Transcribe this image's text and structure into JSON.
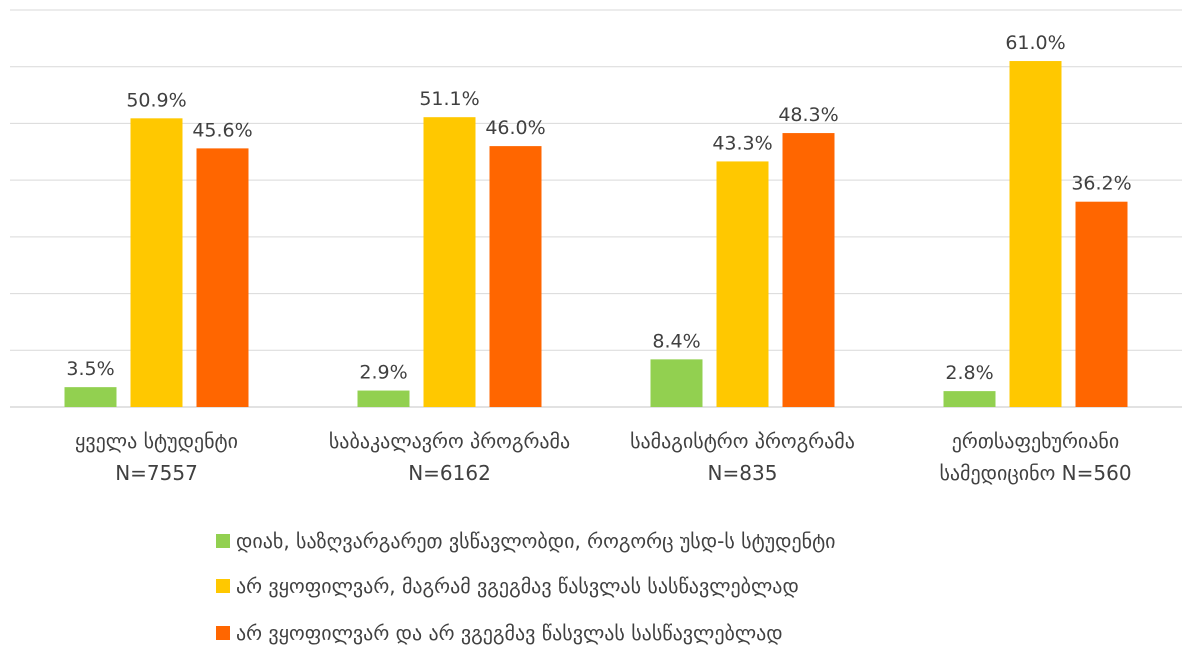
{
  "chart_data": {
    "type": "bar",
    "categories": [
      [
        "ყველა სტუდენტი",
        "N=7557"
      ],
      [
        "საბაკალავრო პროგრამა",
        "N=6162"
      ],
      [
        "სამაგისტრო პროგრამა",
        "N=835"
      ],
      [
        "ერთსაფეხურიანი",
        "სამედიცინო N=560"
      ]
    ],
    "series": [
      {
        "name": "დიახ, საზღვარგარეთ ვსწავლობდი, როგორც უსდ-ს სტუდენტი",
        "color": "#92D050",
        "values": [
          3.5,
          2.9,
          8.4,
          2.8
        ],
        "labels": [
          "3.5%",
          "2.9%",
          "8.4%",
          "2.8%"
        ]
      },
      {
        "name": "არ ვყოფილვარ, მაგრამ ვგეგმავ წასვლას სასწავლებლად",
        "color": "#FFC800",
        "values": [
          50.9,
          51.1,
          43.3,
          61.0
        ],
        "labels": [
          "50.9%",
          "51.1%",
          "43.3%",
          "61.0%"
        ]
      },
      {
        "name": "არ ვყოფილვარ და არ ვგეგმავ წასვლას სასწავლებლად",
        "color": "#FF6600",
        "values": [
          45.6,
          46.0,
          48.3,
          36.2
        ],
        "labels": [
          "45.6%",
          "46.0%",
          "48.3%",
          "36.2%"
        ]
      }
    ],
    "ylim": [
      0,
      70
    ],
    "grid": true,
    "legend_position": "bottom"
  }
}
